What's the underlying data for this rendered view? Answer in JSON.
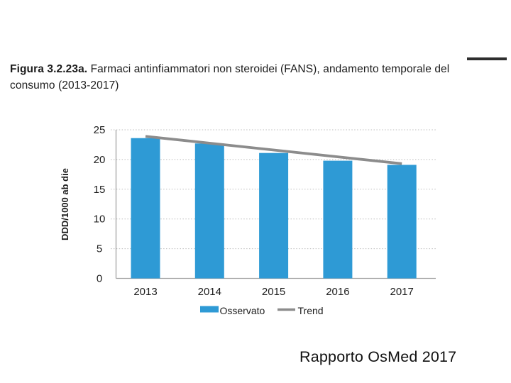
{
  "caption": {
    "figure_label": "Figura 3.2.23a.",
    "line1_rest": " Farmaci antinfiammatori non steroidei (FANS), andamento temporale del",
    "line2": "consumo (2013-2017)"
  },
  "footer": {
    "text": "Rapporto OsMed 2017"
  },
  "colors": {
    "bar": "#2e9ad5",
    "trend": "#8c8c8c",
    "grid": "#bdbdbd",
    "axis": "#a3a3a3",
    "overline": "#2e2e2e",
    "text": "#1d1d1d"
  },
  "chart_data": {
    "type": "bar",
    "title": "",
    "categories": [
      "2013",
      "2014",
      "2015",
      "2016",
      "2017"
    ],
    "series": [
      {
        "name": "Osservato",
        "type": "bar",
        "color": "#2e9ad5",
        "values": [
          23.6,
          22.7,
          21.1,
          19.8,
          19.1
        ]
      },
      {
        "name": "Trend",
        "type": "line",
        "color": "#8c8c8c",
        "values": [
          23.9,
          22.75,
          21.6,
          20.45,
          19.3
        ]
      }
    ],
    "xlabel": "",
    "ylabel": "DDD/1000 ab die",
    "ylim": [
      0,
      25
    ],
    "yticks": [
      0,
      5,
      10,
      15,
      20,
      25
    ],
    "grid": "horizontal-dotted",
    "legend_position": "bottom"
  }
}
